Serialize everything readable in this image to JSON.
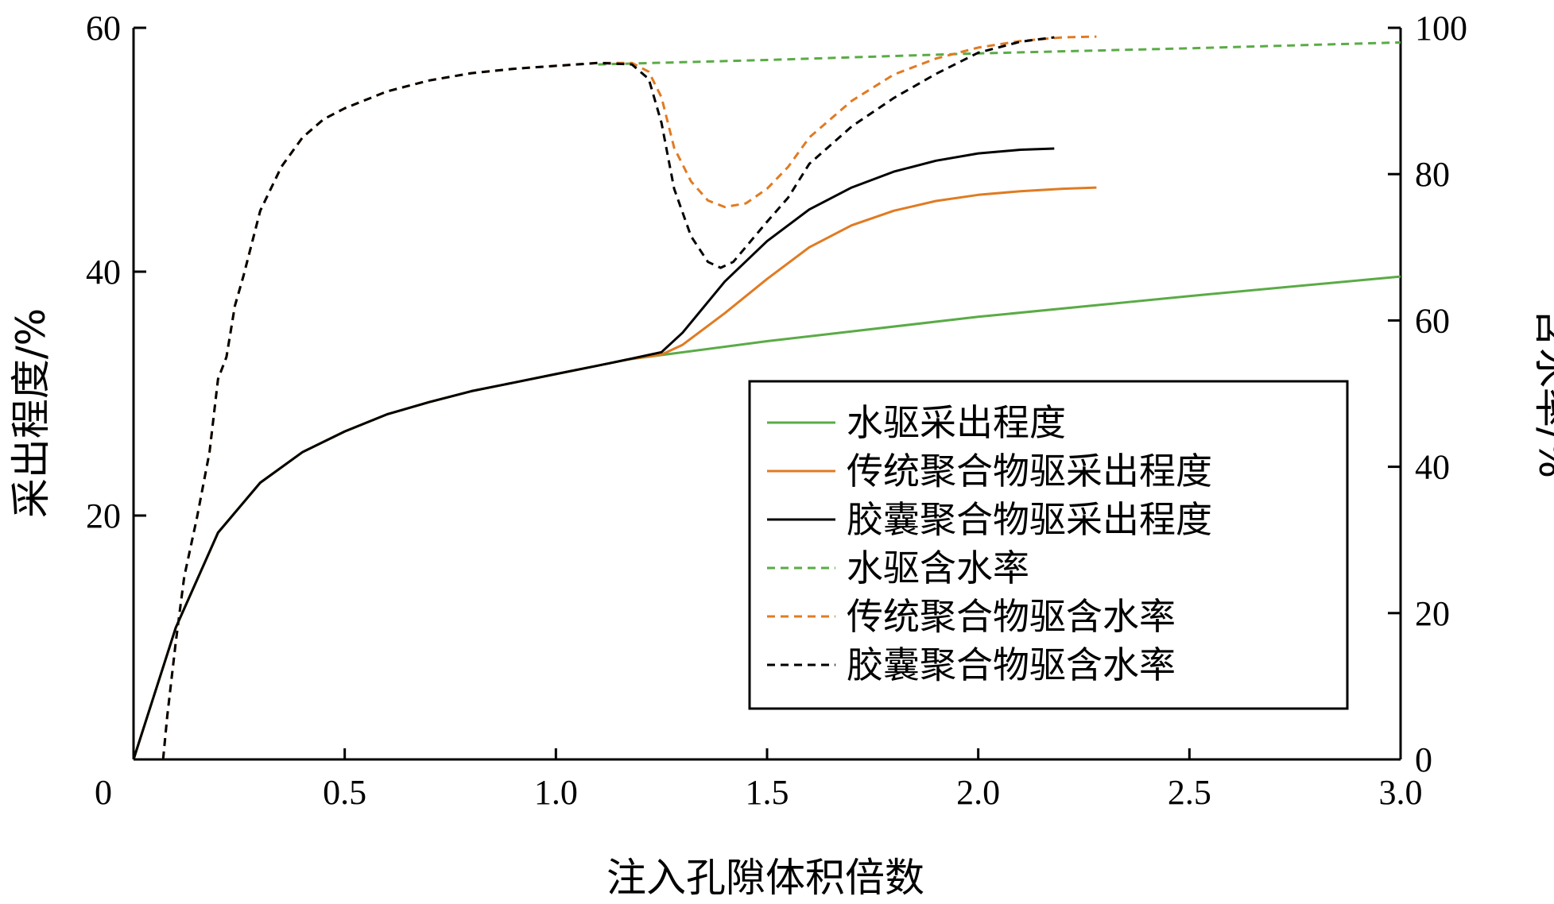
{
  "chart_data": {
    "type": "line",
    "xlabel": "注入孔隙体积倍数",
    "ylabel_left": "采出程度/%",
    "ylabel_right": "含水率/%",
    "xlim": [
      0,
      3.0
    ],
    "ylim_left": [
      0,
      60
    ],
    "ylim_right": [
      0,
      100
    ],
    "x_ticks": [
      "0",
      "0.5",
      "1.0",
      "1.5",
      "2.0",
      "2.5",
      "3.0"
    ],
    "y_left_ticks": [
      "20",
      "40",
      "60"
    ],
    "y_right_ticks": [
      "0",
      "20",
      "40",
      "60",
      "80",
      "100"
    ],
    "grid": false,
    "legend_position": "lower-right",
    "series": [
      {
        "name": "水驱采出程度",
        "axis": "left",
        "color": "#5aab46",
        "dash": "solid",
        "points": [
          [
            0,
            0
          ],
          [
            0.1,
            10.8
          ],
          [
            0.2,
            18.6
          ],
          [
            0.3,
            22.7
          ],
          [
            0.4,
            25.2
          ],
          [
            0.5,
            26.9
          ],
          [
            0.6,
            28.3
          ],
          [
            0.7,
            29.3
          ],
          [
            0.8,
            30.2
          ],
          [
            0.9,
            30.9
          ],
          [
            1.0,
            31.6
          ],
          [
            1.1,
            32.3
          ],
          [
            1.17,
            32.8
          ],
          [
            1.5,
            34.3
          ],
          [
            2.0,
            36.3
          ],
          [
            2.5,
            38.0
          ],
          [
            3.0,
            39.6
          ]
        ]
      },
      {
        "name": "传统聚合物驱采出程度",
        "axis": "left",
        "color": "#e07b22",
        "dash": "solid",
        "points": [
          [
            0,
            0
          ],
          [
            0.1,
            10.8
          ],
          [
            0.2,
            18.6
          ],
          [
            0.3,
            22.7
          ],
          [
            0.4,
            25.2
          ],
          [
            0.5,
            26.9
          ],
          [
            0.6,
            28.3
          ],
          [
            0.7,
            29.3
          ],
          [
            0.8,
            30.2
          ],
          [
            0.9,
            30.9
          ],
          [
            1.0,
            31.6
          ],
          [
            1.1,
            32.3
          ],
          [
            1.17,
            32.8
          ],
          [
            1.25,
            33.2
          ],
          [
            1.3,
            34.0
          ],
          [
            1.4,
            36.6
          ],
          [
            1.5,
            39.4
          ],
          [
            1.6,
            42.0
          ],
          [
            1.7,
            43.8
          ],
          [
            1.8,
            45.0
          ],
          [
            1.9,
            45.8
          ],
          [
            2.0,
            46.3
          ],
          [
            2.1,
            46.6
          ],
          [
            2.2,
            46.8
          ],
          [
            2.28,
            46.9
          ]
        ]
      },
      {
        "name": "胶囊聚合物驱采出程度",
        "axis": "left",
        "color": "#000000",
        "dash": "solid",
        "points": [
          [
            0,
            0
          ],
          [
            0.1,
            10.8
          ],
          [
            0.2,
            18.6
          ],
          [
            0.3,
            22.7
          ],
          [
            0.4,
            25.2
          ],
          [
            0.5,
            26.9
          ],
          [
            0.6,
            28.3
          ],
          [
            0.7,
            29.3
          ],
          [
            0.8,
            30.2
          ],
          [
            0.9,
            30.9
          ],
          [
            1.0,
            31.6
          ],
          [
            1.1,
            32.3
          ],
          [
            1.17,
            32.8
          ],
          [
            1.25,
            33.4
          ],
          [
            1.3,
            35.0
          ],
          [
            1.4,
            39.2
          ],
          [
            1.5,
            42.5
          ],
          [
            1.6,
            45.1
          ],
          [
            1.7,
            46.9
          ],
          [
            1.8,
            48.2
          ],
          [
            1.9,
            49.1
          ],
          [
            2.0,
            49.7
          ],
          [
            2.1,
            50.0
          ],
          [
            2.18,
            50.1
          ]
        ]
      },
      {
        "name": "水驱含水率",
        "axis": "right",
        "color": "#5aab46",
        "dash": "dashed",
        "points": [
          [
            1.1,
            95.0
          ],
          [
            1.5,
            95.6
          ],
          [
            2.0,
            96.5
          ],
          [
            2.5,
            97.2
          ],
          [
            3.0,
            98.0
          ]
        ]
      },
      {
        "name": "传统聚合物驱含水率",
        "axis": "right",
        "color": "#e07b22",
        "dash": "dashed",
        "points": [
          [
            0.07,
            0
          ],
          [
            0.08,
            6
          ],
          [
            0.1,
            16
          ],
          [
            0.12,
            25
          ],
          [
            0.15,
            33
          ],
          [
            0.18,
            42
          ],
          [
            0.2,
            52
          ],
          [
            0.22,
            55
          ],
          [
            0.24,
            62
          ],
          [
            0.26,
            66
          ],
          [
            0.3,
            75
          ],
          [
            0.35,
            81
          ],
          [
            0.4,
            85
          ],
          [
            0.45,
            87.5
          ],
          [
            0.5,
            89
          ],
          [
            0.6,
            91.3
          ],
          [
            0.7,
            92.8
          ],
          [
            0.8,
            93.8
          ],
          [
            0.9,
            94.4
          ],
          [
            1.0,
            94.8
          ],
          [
            1.1,
            95.2
          ],
          [
            1.18,
            95.2
          ],
          [
            1.22,
            94.0
          ],
          [
            1.25,
            90.5
          ],
          [
            1.28,
            83.6
          ],
          [
            1.32,
            79.0
          ],
          [
            1.36,
            76.4
          ],
          [
            1.4,
            75.5
          ],
          [
            1.45,
            76.0
          ],
          [
            1.5,
            78.0
          ],
          [
            1.55,
            81.0
          ],
          [
            1.6,
            85.0
          ],
          [
            1.7,
            90.0
          ],
          [
            1.8,
            93.6
          ],
          [
            1.9,
            95.8
          ],
          [
            2.0,
            97.3
          ],
          [
            2.1,
            98.2
          ],
          [
            2.2,
            98.7
          ],
          [
            2.28,
            98.8
          ]
        ]
      },
      {
        "name": "胶囊聚合物驱含水率",
        "axis": "right",
        "color": "#000000",
        "dash": "dashed",
        "points": [
          [
            0.07,
            0
          ],
          [
            0.08,
            6
          ],
          [
            0.1,
            16
          ],
          [
            0.12,
            25
          ],
          [
            0.15,
            33
          ],
          [
            0.18,
            42
          ],
          [
            0.2,
            52
          ],
          [
            0.22,
            55
          ],
          [
            0.24,
            62
          ],
          [
            0.26,
            66
          ],
          [
            0.3,
            75
          ],
          [
            0.35,
            81
          ],
          [
            0.4,
            85
          ],
          [
            0.45,
            87.5
          ],
          [
            0.5,
            89
          ],
          [
            0.6,
            91.3
          ],
          [
            0.7,
            92.8
          ],
          [
            0.8,
            93.8
          ],
          [
            0.9,
            94.4
          ],
          [
            1.0,
            94.8
          ],
          [
            1.1,
            95.2
          ],
          [
            1.18,
            95.0
          ],
          [
            1.22,
            93.0
          ],
          [
            1.25,
            87.0
          ],
          [
            1.28,
            78.0
          ],
          [
            1.32,
            71.5
          ],
          [
            1.36,
            68.0
          ],
          [
            1.39,
            67.2
          ],
          [
            1.42,
            68.0
          ],
          [
            1.5,
            73.5
          ],
          [
            1.55,
            76.8
          ],
          [
            1.6,
            81.4
          ],
          [
            1.7,
            86.5
          ],
          [
            1.8,
            90.4
          ],
          [
            1.9,
            93.7
          ],
          [
            2.0,
            96.6
          ],
          [
            2.1,
            98.1
          ],
          [
            2.18,
            98.7
          ]
        ]
      }
    ]
  }
}
